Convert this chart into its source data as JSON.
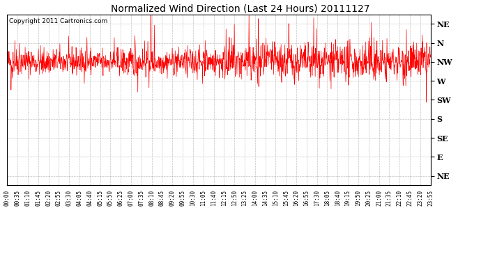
{
  "title": "Normalized Wind Direction (Last 24 Hours) 20111127",
  "copyright_text": "Copyright 2011 Cartronics.com",
  "line_color": "#ff0000",
  "bg_color": "#ffffff",
  "plot_bg_color": "#ffffff",
  "grid_color": "#999999",
  "ytick_labels": [
    "NE",
    "N",
    "NW",
    "W",
    "SW",
    "S",
    "SE",
    "E",
    "NE"
  ],
  "ytick_values": [
    8,
    7,
    6,
    5,
    4,
    3,
    2,
    1,
    0
  ],
  "ylim": [
    -0.5,
    8.5
  ],
  "xtick_labels": [
    "00:00",
    "00:35",
    "01:10",
    "01:45",
    "02:20",
    "02:55",
    "03:30",
    "04:05",
    "04:40",
    "05:15",
    "05:50",
    "06:25",
    "07:00",
    "07:35",
    "08:10",
    "08:45",
    "09:20",
    "09:55",
    "10:30",
    "11:05",
    "11:40",
    "12:15",
    "12:50",
    "13:25",
    "14:00",
    "14:35",
    "15:10",
    "15:45",
    "16:20",
    "16:55",
    "17:30",
    "18:05",
    "18:40",
    "19:15",
    "19:50",
    "20:25",
    "21:00",
    "21:35",
    "22:10",
    "22:45",
    "23:20",
    "23:55"
  ],
  "seed": 42,
  "n_points": 1440,
  "base_value": 6.0,
  "noise_std": 0.35,
  "spike_prob": 0.015,
  "spike_up": 1.8,
  "spike_down": 1.2
}
